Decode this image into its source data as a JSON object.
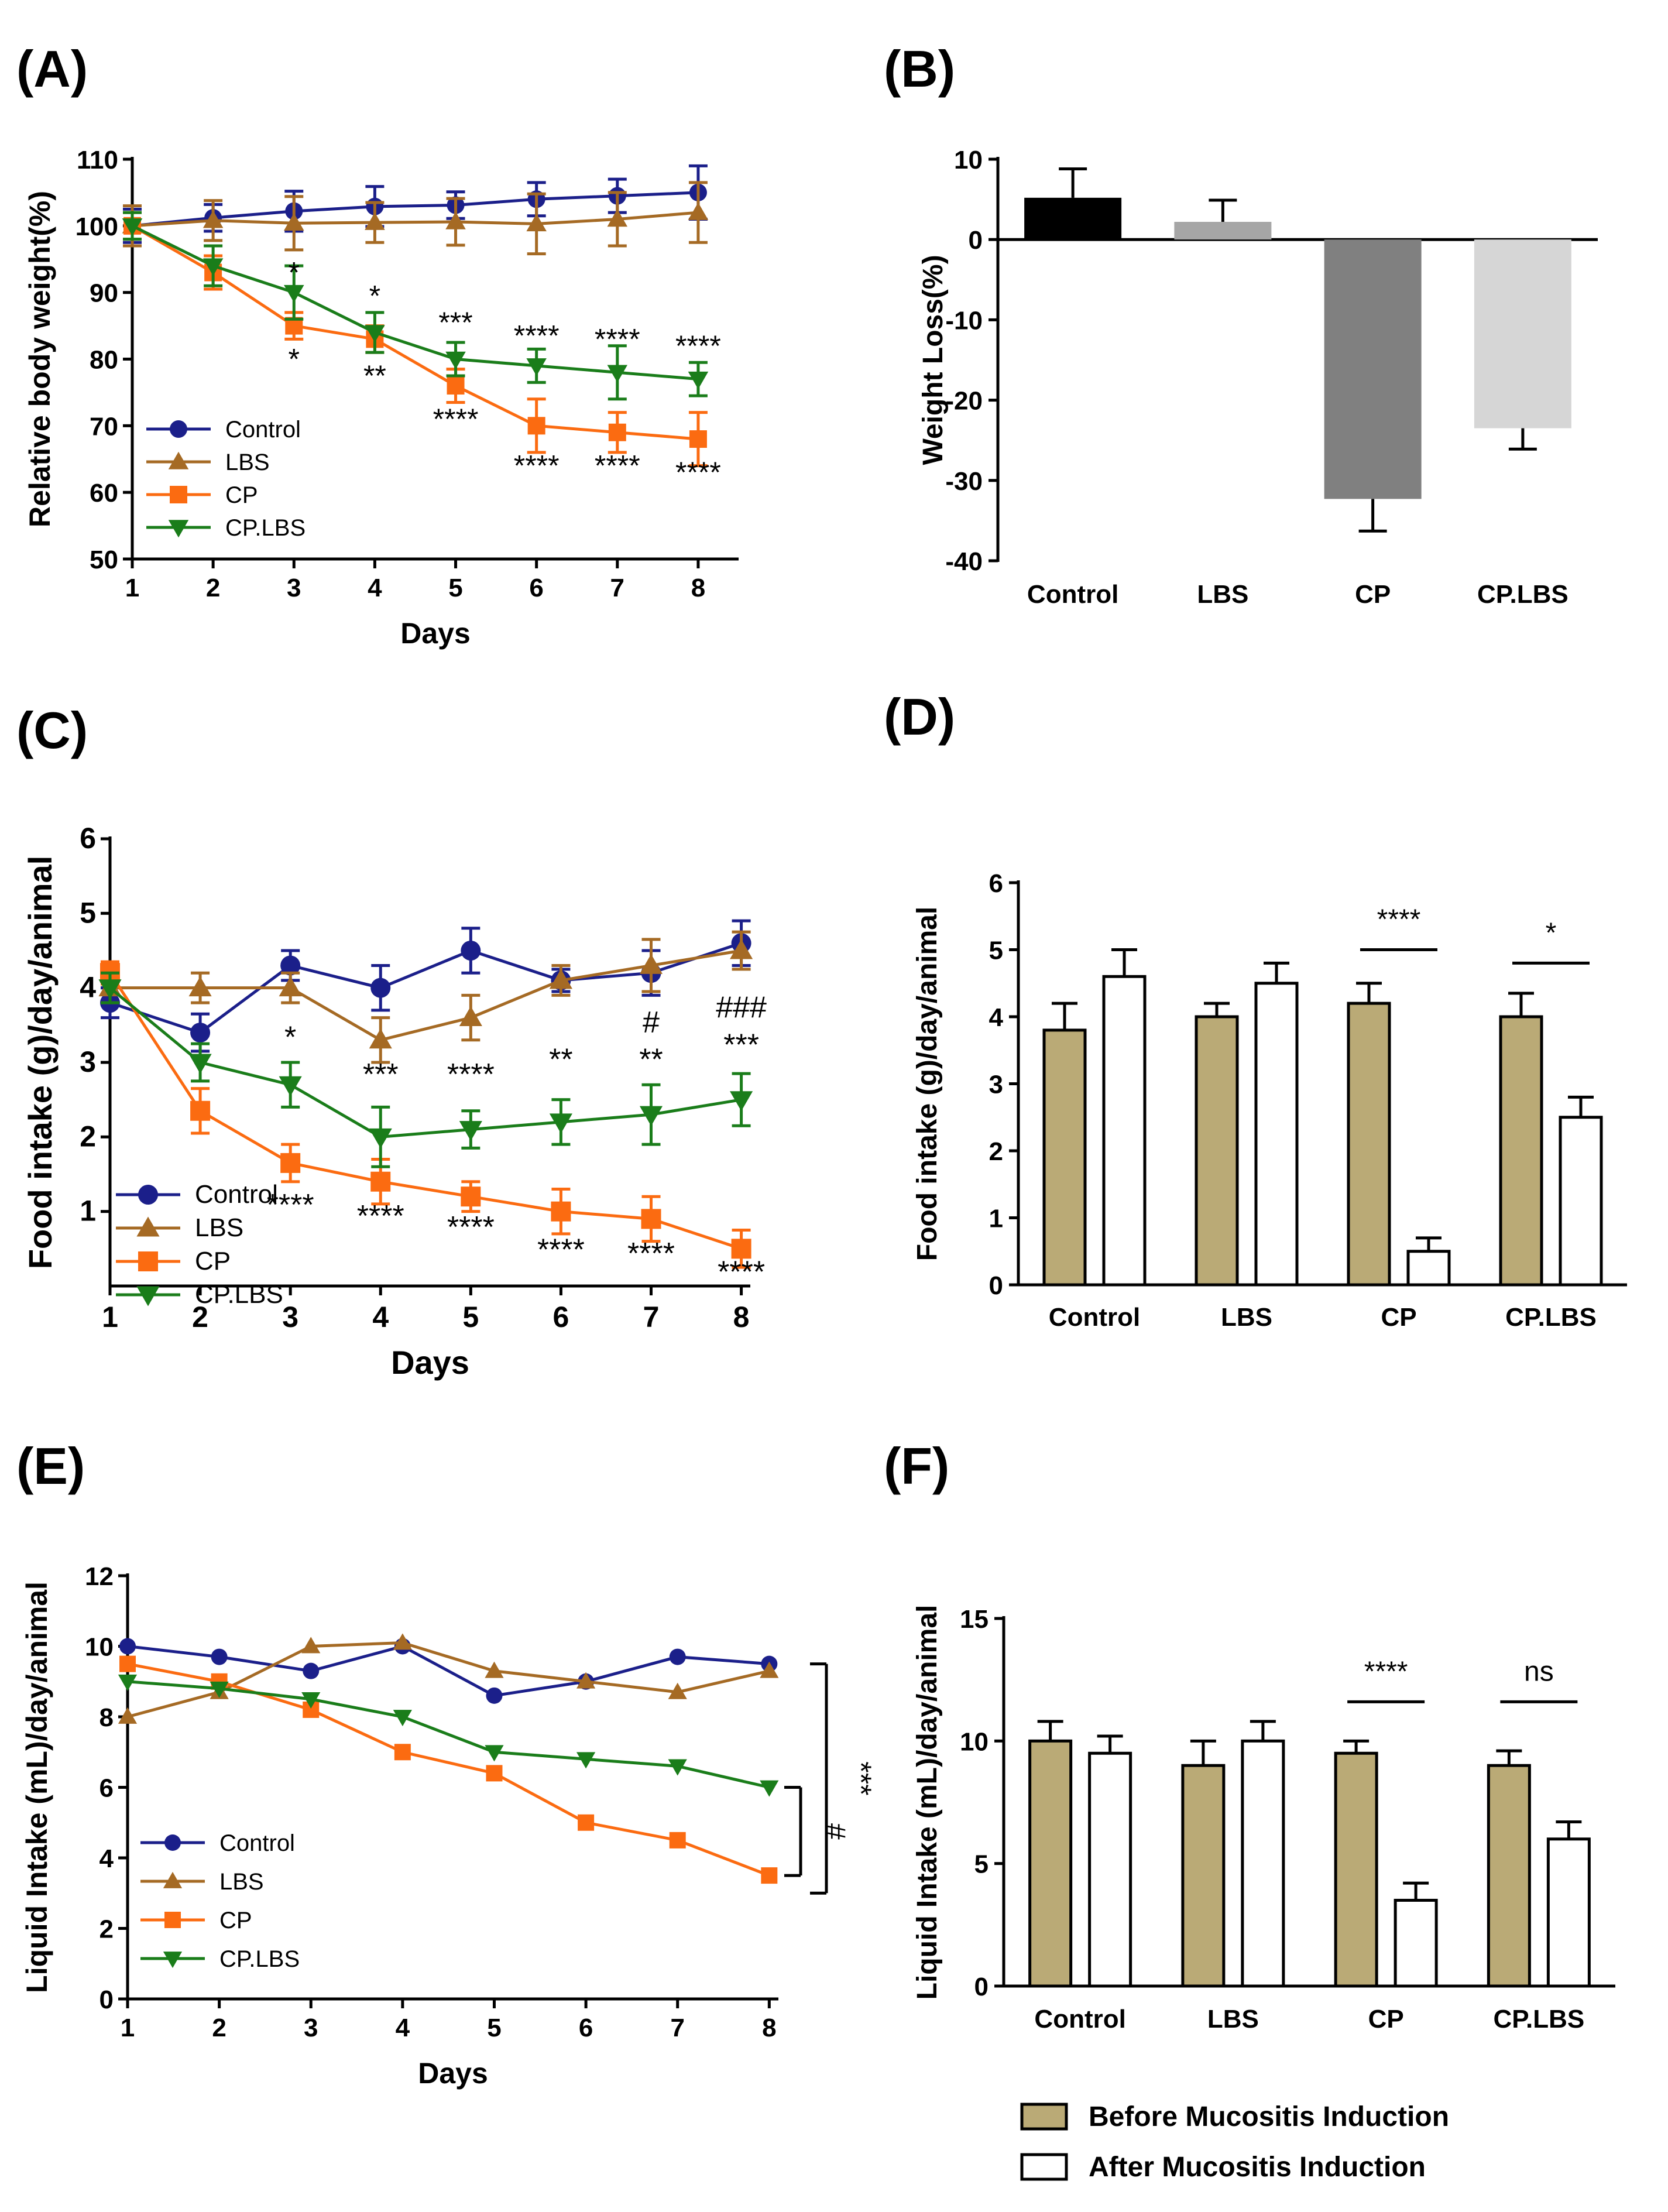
{
  "colors": {
    "control": "#1b1f8a",
    "lbs": "#a56a24",
    "cp": "#fb6b11",
    "cplbs": "#1a7d1a",
    "bar_before": "#baaa76",
    "bar_after": "#ffffff",
    "bar_control": "#000000",
    "bar_lbs": "#a6a6a6",
    "bar_cp": "#808080",
    "bar_cplbs": "#d6d6d6"
  },
  "chart_data": [
    {
      "panel": "(A)",
      "type": "line",
      "xlabel": "Days",
      "ylabel": "Relative body weight(%)",
      "x": [
        1,
        2,
        3,
        4,
        5,
        6,
        7,
        8
      ],
      "xlim": [
        1,
        8.5
      ],
      "ylim": [
        50,
        110
      ],
      "yticks": [
        50,
        60,
        70,
        80,
        90,
        100,
        110
      ],
      "legend_position": "bottom-left",
      "series": [
        {
          "name": "Control",
          "key": "control",
          "marker": "circle",
          "values": [
            100,
            101.2,
            102.2,
            102.9,
            103.1,
            104,
            104.5,
            105
          ],
          "err": [
            2.5,
            2,
            3,
            3,
            2,
            2.5,
            2.5,
            4
          ]
        },
        {
          "name": "LBS",
          "key": "lbs",
          "marker": "triangle-up",
          "values": [
            100,
            100.8,
            100.4,
            100.5,
            100.6,
            100.3,
            101,
            102
          ],
          "err": [
            3,
            3,
            4,
            3,
            3.5,
            4.5,
            4,
            4.5
          ]
        },
        {
          "name": "CP",
          "key": "cp",
          "marker": "square",
          "values": [
            100,
            93,
            85,
            83,
            76,
            70,
            69,
            68
          ],
          "err": [
            2,
            2.5,
            2,
            2,
            2.5,
            4,
            3,
            4
          ]
        },
        {
          "name": "CP.LBS",
          "key": "cplbs",
          "marker": "triangle-down",
          "values": [
            100,
            94,
            90,
            84,
            80,
            79,
            78,
            77
          ],
          "err": [
            2,
            3,
            4,
            3,
            2.5,
            2.5,
            4,
            2.5
          ]
        }
      ],
      "annotations": [
        {
          "text": "*",
          "x": 3,
          "y": 91.5
        },
        {
          "text": "*",
          "x": 4,
          "y": 88
        },
        {
          "text": "***",
          "x": 5,
          "y": 84
        },
        {
          "text": "****",
          "x": 6,
          "y": 82
        },
        {
          "text": "****",
          "x": 7,
          "y": 81.5
        },
        {
          "text": "****",
          "x": 8,
          "y": 80.5
        },
        {
          "text": "*",
          "x": 3,
          "y": 78.5
        },
        {
          "text": "**",
          "x": 4,
          "y": 76
        },
        {
          "text": "****",
          "x": 5,
          "y": 69.5
        },
        {
          "text": "****",
          "x": 6,
          "y": 62.5
        },
        {
          "text": "****",
          "x": 7,
          "y": 62.5
        },
        {
          "text": "****",
          "x": 8,
          "y": 61.5
        }
      ]
    },
    {
      "panel": "(B)",
      "type": "bar",
      "xlabel": "",
      "ylabel": "Weight Loss(%)",
      "categories": [
        "Control",
        "LBS",
        "CP",
        "CP.LBS"
      ],
      "values": [
        5.2,
        2.2,
        -32.3,
        -23.5
      ],
      "err": [
        3.6,
        2.7,
        4,
        2.6
      ],
      "bar_color_keys": [
        "bar_control",
        "bar_lbs",
        "bar_cp",
        "bar_cplbs"
      ],
      "ylim": [
        -40,
        10
      ],
      "yticks": [
        -40,
        -30,
        -20,
        -10,
        0,
        10
      ]
    },
    {
      "panel": "(C)",
      "type": "line",
      "xlabel": "Days",
      "ylabel": "Food intake (g)/day/animal",
      "x": [
        1,
        2,
        3,
        4,
        5,
        6,
        7,
        8
      ],
      "xlim": [
        1,
        8.1
      ],
      "ylim": [
        0,
        6
      ],
      "yticks": [
        1,
        2,
        3,
        4,
        5,
        6
      ],
      "legend_position": "bottom-left",
      "series": [
        {
          "name": "Control",
          "key": "control",
          "marker": "circle",
          "values": [
            3.8,
            3.4,
            4.3,
            4.0,
            4.5,
            4.1,
            4.2,
            4.6
          ],
          "err": [
            0.2,
            0.25,
            0.2,
            0.3,
            0.3,
            0.15,
            0.3,
            0.3
          ]
        },
        {
          "name": "LBS",
          "key": "lbs",
          "marker": "triangle-up",
          "values": [
            4.0,
            4.0,
            4.0,
            3.3,
            3.6,
            4.1,
            4.3,
            4.5
          ],
          "err": [
            0.2,
            0.2,
            0.2,
            0.3,
            0.3,
            0.2,
            0.35,
            0.25
          ]
        },
        {
          "name": "CP",
          "key": "cp",
          "marker": "square",
          "values": [
            4.2,
            2.35,
            1.65,
            1.4,
            1.2,
            1.0,
            0.9,
            0.5
          ],
          "err": [
            0.15,
            0.3,
            0.25,
            0.3,
            0.2,
            0.3,
            0.3,
            0.25
          ]
        },
        {
          "name": "CP.LBS",
          "key": "cplbs",
          "marker": "triangle-down",
          "values": [
            4.0,
            3.0,
            2.7,
            2.0,
            2.1,
            2.2,
            2.3,
            2.5
          ],
          "err": [
            0.2,
            0.25,
            0.3,
            0.4,
            0.25,
            0.3,
            0.4,
            0.35
          ]
        }
      ],
      "annotations": [
        {
          "text": "*",
          "x": 3,
          "y": 3.2
        },
        {
          "text": "***",
          "x": 4,
          "y": 2.7
        },
        {
          "text": "****",
          "x": 5,
          "y": 2.7
        },
        {
          "text": "**",
          "x": 6,
          "y": 2.9
        },
        {
          "text": "#",
          "x": 7,
          "y": 3.4
        },
        {
          "text": "**",
          "x": 7,
          "y": 2.9
        },
        {
          "text": "###",
          "x": 8,
          "y": 3.6
        },
        {
          "text": "***",
          "x": 8,
          "y": 3.1
        },
        {
          "text": "****",
          "x": 3,
          "y": 0.95
        },
        {
          "text": "****",
          "x": 4,
          "y": 0.8
        },
        {
          "text": "****",
          "x": 5,
          "y": 0.65
        },
        {
          "text": "****",
          "x": 6,
          "y": 0.35
        },
        {
          "text": "****",
          "x": 7,
          "y": 0.3
        },
        {
          "text": "****",
          "x": 8,
          "y": 0.05
        }
      ]
    },
    {
      "panel": "(D)",
      "type": "bar",
      "xlabel": "",
      "ylabel": "Food intake (g)/day/animal",
      "categories": [
        "Control",
        "LBS",
        "CP",
        "CP.LBS"
      ],
      "ylim": [
        0,
        6
      ],
      "yticks": [
        0,
        1,
        2,
        3,
        4,
        5,
        6
      ],
      "series": [
        {
          "name": "Before Mucositis Induction",
          "key": "bar_before",
          "values": [
            3.8,
            4.0,
            4.2,
            4.0
          ],
          "err": [
            0.4,
            0.2,
            0.3,
            0.35
          ]
        },
        {
          "name": "After Mucositis Induction",
          "key": "bar_after",
          "values": [
            4.6,
            4.5,
            0.5,
            2.5
          ],
          "err": [
            0.4,
            0.3,
            0.2,
            0.3
          ]
        }
      ],
      "annotations": [
        {
          "category": "CP",
          "text": "****",
          "y": 5.0
        },
        {
          "category": "CP.LBS",
          "text": "*",
          "y": 4.8
        }
      ]
    },
    {
      "panel": "(E)",
      "type": "line",
      "xlabel": "Days",
      "ylabel": "Liquid Intake (mL)/day/animal",
      "x": [
        1,
        2,
        3,
        4,
        5,
        6,
        7,
        8
      ],
      "xlim": [
        1,
        8.1
      ],
      "ylim": [
        0,
        12
      ],
      "yticks": [
        0,
        2,
        4,
        6,
        8,
        10,
        12
      ],
      "legend_position": "bottom-left",
      "series": [
        {
          "name": "Control",
          "key": "control",
          "marker": "circle",
          "values": [
            10.0,
            9.7,
            9.3,
            10.0,
            8.6,
            9.0,
            9.7,
            9.5
          ]
        },
        {
          "name": "LBS",
          "key": "lbs",
          "marker": "triangle-up",
          "values": [
            8.0,
            8.7,
            10.0,
            10.1,
            9.3,
            9.0,
            8.7,
            9.3
          ]
        },
        {
          "name": "CP",
          "key": "cp",
          "marker": "square",
          "values": [
            9.5,
            9.0,
            8.2,
            7.0,
            6.4,
            5.0,
            4.5,
            3.5
          ]
        },
        {
          "name": "CP.LBS",
          "key": "cplbs",
          "marker": "triangle-down",
          "values": [
            9.0,
            8.8,
            8.5,
            8.0,
            7.0,
            6.8,
            6.6,
            6.0
          ]
        }
      ],
      "brackets": [
        {
          "text": "***",
          "from": 9.5,
          "to": 3.0
        },
        {
          "text": "#",
          "from": 6.0,
          "to": 3.5
        }
      ]
    },
    {
      "panel": "(F)",
      "type": "bar",
      "xlabel": "",
      "ylabel": "Liquid Intake (mL)/day/animal",
      "categories": [
        "Control",
        "LBS",
        "CP",
        "CP.LBS"
      ],
      "ylim": [
        0,
        15
      ],
      "yticks": [
        0,
        5,
        10,
        15
      ],
      "series": [
        {
          "name": "Before Mucositis Induction",
          "key": "bar_before",
          "values": [
            10.0,
            9.0,
            9.5,
            9.0
          ],
          "err": [
            0.8,
            1.0,
            0.5,
            0.6
          ]
        },
        {
          "name": "After Mucositis Induction",
          "key": "bar_after",
          "values": [
            9.5,
            10.0,
            3.5,
            6.0
          ],
          "err": [
            0.7,
            0.8,
            0.7,
            0.7
          ]
        }
      ],
      "annotations": [
        {
          "category": "CP",
          "text": "****",
          "y": 11.6
        },
        {
          "category": "CP.LBS",
          "text": "ns",
          "y": 11.6
        }
      ]
    }
  ],
  "bar_legend": [
    "Before Mucositis Induction",
    "After Mucositis Induction"
  ]
}
